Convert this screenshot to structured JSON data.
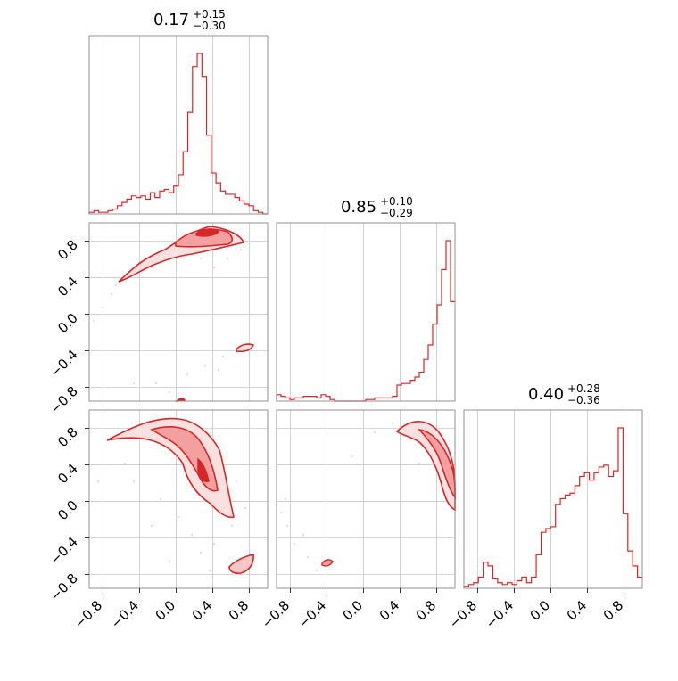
{
  "chart_data": {
    "type": "corner",
    "color": "#d62728",
    "parameters": [
      {
        "median": "0.17",
        "plus": "+0.15",
        "minus": "−0.30"
      },
      {
        "median": "0.85",
        "plus": "+0.10",
        "minus": "−0.29"
      },
      {
        "median": "0.40",
        "plus": "+0.28",
        "minus": "−0.36"
      }
    ],
    "ticks": [
      -0.8,
      -0.4,
      0.0,
      0.4,
      0.8
    ],
    "tick_labels": [
      "−0.8",
      "−0.4",
      "0.0",
      "0.4",
      "0.8"
    ],
    "range": [
      -0.95,
      1.0
    ],
    "histograms": [
      {
        "bins_x": [
          -0.95,
          -0.9,
          -0.85,
          -0.8,
          -0.75,
          -0.7,
          -0.65,
          -0.6,
          -0.55,
          -0.5,
          -0.45,
          -0.4,
          -0.35,
          -0.3,
          -0.25,
          -0.2,
          -0.15,
          -0.1,
          -0.05,
          0.0,
          0.05,
          0.1,
          0.15,
          0.2,
          0.25,
          0.3,
          0.35,
          0.4,
          0.45,
          0.5,
          0.55,
          0.6,
          0.65,
          0.7,
          0.75,
          0.8,
          0.85,
          0.9,
          0.95
        ],
        "values": [
          0.01,
          0.02,
          0.01,
          0.01,
          0.02,
          0.03,
          0.05,
          0.07,
          0.09,
          0.11,
          0.1,
          0.11,
          0.09,
          0.13,
          0.1,
          0.14,
          0.15,
          0.13,
          0.17,
          0.24,
          0.38,
          0.62,
          0.9,
          0.98,
          0.84,
          0.48,
          0.25,
          0.19,
          0.14,
          0.12,
          0.12,
          0.1,
          0.08,
          0.06,
          0.05,
          0.02,
          0.01,
          0.0
        ]
      },
      {
        "bins_x": [
          -0.95,
          -0.9,
          -0.85,
          -0.8,
          -0.75,
          -0.7,
          -0.65,
          -0.6,
          -0.55,
          -0.5,
          -0.45,
          -0.4,
          -0.35,
          -0.3,
          -0.25,
          -0.2,
          -0.15,
          -0.1,
          -0.05,
          0.0,
          0.05,
          0.1,
          0.15,
          0.2,
          0.25,
          0.3,
          0.35,
          0.4,
          0.45,
          0.5,
          0.55,
          0.6,
          0.65,
          0.7,
          0.75,
          0.8,
          0.85,
          0.9,
          0.95,
          1.0
        ],
        "values": [
          0.04,
          0.03,
          0.02,
          0.01,
          0.02,
          0.02,
          0.03,
          0.03,
          0.03,
          0.02,
          0.04,
          0.03,
          0.01,
          0.0,
          0.0,
          0.0,
          0.0,
          0.0,
          0.0,
          0.0,
          0.01,
          0.01,
          0.02,
          0.02,
          0.02,
          0.02,
          0.03,
          0.1,
          0.11,
          0.11,
          0.13,
          0.15,
          0.18,
          0.26,
          0.35,
          0.48,
          0.6,
          0.82,
          1.0,
          0.62
        ]
      },
      {
        "bins_x": [
          -0.95,
          -0.9,
          -0.85,
          -0.8,
          -0.75,
          -0.7,
          -0.65,
          -0.6,
          -0.55,
          -0.5,
          -0.45,
          -0.4,
          -0.35,
          -0.3,
          -0.25,
          -0.2,
          -0.15,
          -0.1,
          -0.05,
          0.0,
          0.05,
          0.1,
          0.15,
          0.2,
          0.25,
          0.3,
          0.35,
          0.4,
          0.45,
          0.5,
          0.55,
          0.6,
          0.65,
          0.7,
          0.75,
          0.8,
          0.85,
          0.9
        ],
        "values": [
          0.01,
          0.02,
          0.03,
          0.06,
          0.14,
          0.12,
          0.05,
          0.03,
          0.02,
          0.03,
          0.02,
          0.04,
          0.06,
          0.03,
          0.06,
          0.18,
          0.3,
          0.32,
          0.33,
          0.45,
          0.48,
          0.5,
          0.51,
          0.55,
          0.6,
          0.62,
          0.58,
          0.62,
          0.65,
          0.66,
          0.6,
          0.63,
          0.86,
          0.4,
          0.2,
          0.12,
          0.06
        ]
      }
    ],
    "panels_2d": [
      {
        "x_param": 0,
        "y_param": 1
      },
      {
        "x_param": 0,
        "y_param": 2
      },
      {
        "x_param": 1,
        "y_param": 2
      }
    ]
  }
}
